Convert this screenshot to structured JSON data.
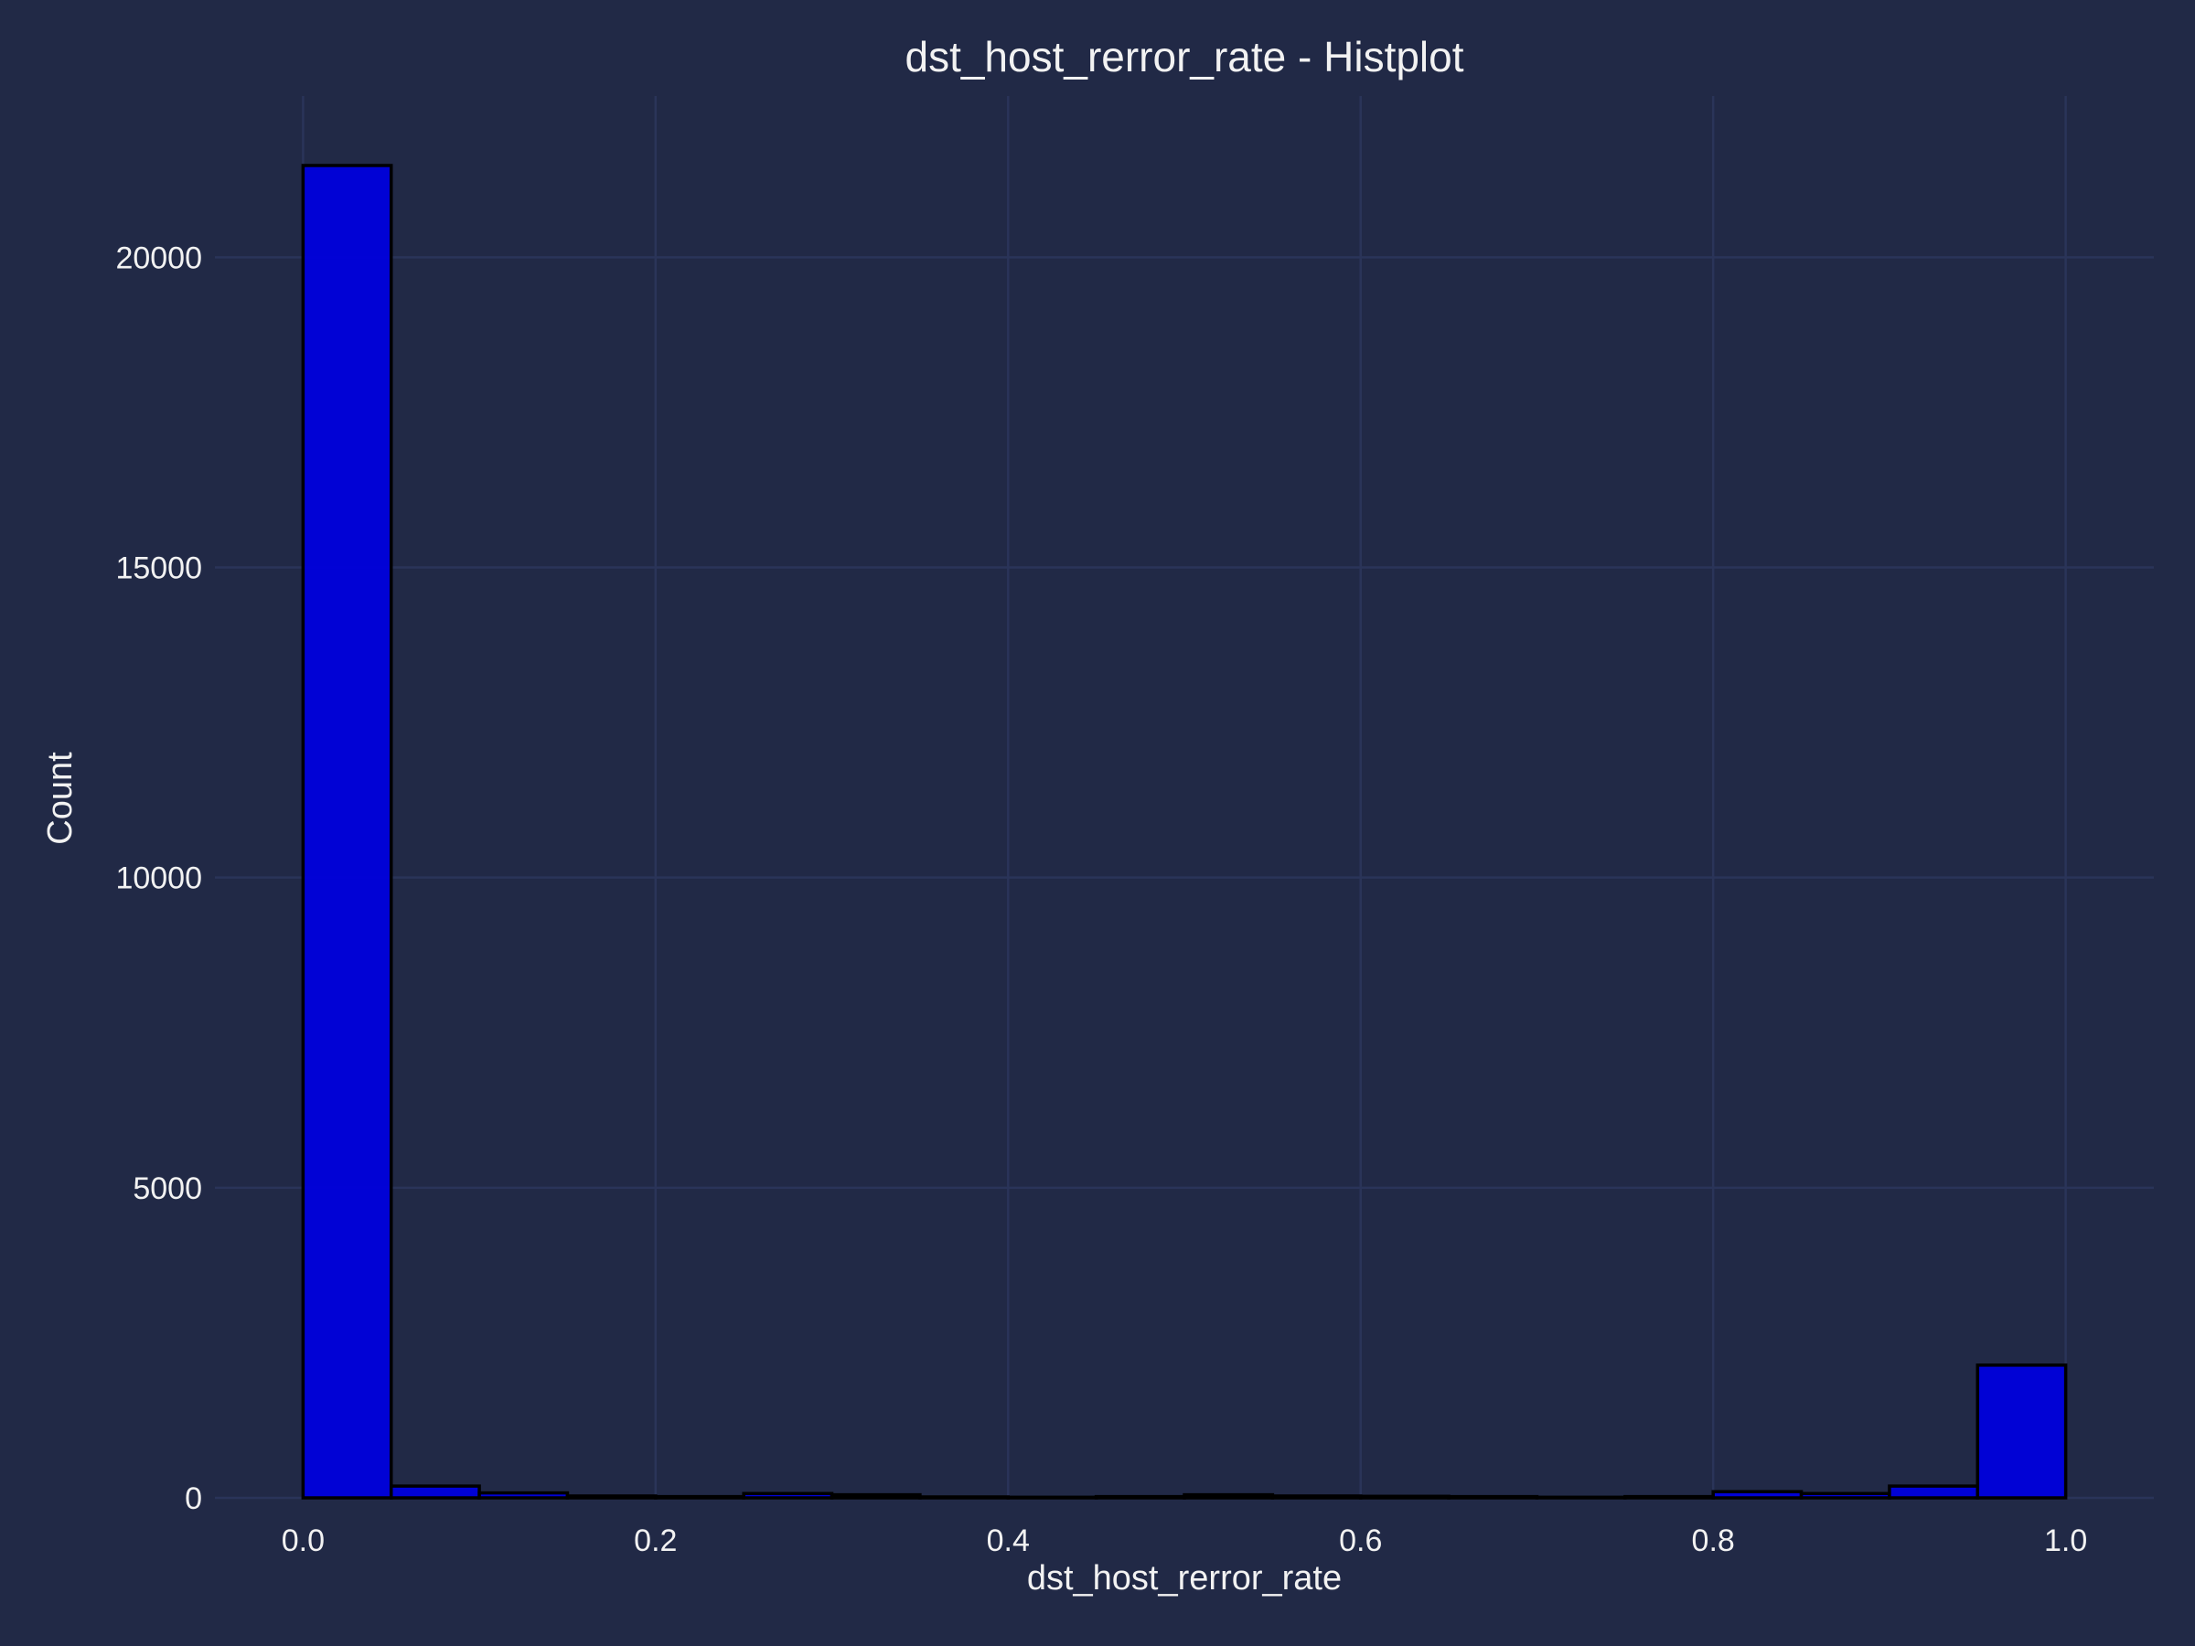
{
  "chart_data": {
    "type": "bar",
    "title": "dst_host_rerror_rate - Histplot",
    "xlabel": "dst_host_rerror_rate",
    "ylabel": "Count",
    "bin_edges": [
      0.0,
      0.05,
      0.1,
      0.15,
      0.2,
      0.25,
      0.3,
      0.35,
      0.4,
      0.45,
      0.5,
      0.55,
      0.6,
      0.65,
      0.7,
      0.75,
      0.8,
      0.85,
      0.9,
      0.95,
      1.0
    ],
    "values": [
      21480,
      190,
      80,
      30,
      20,
      70,
      50,
      15,
      10,
      20,
      50,
      30,
      25,
      20,
      10,
      20,
      100,
      70,
      190,
      2140
    ],
    "xlim": [
      -0.05,
      1.05
    ],
    "ylim": [
      0,
      22600
    ],
    "xticks": [
      0.0,
      0.2,
      0.4,
      0.6,
      0.8,
      1.0
    ],
    "xtick_labels": [
      "0.0",
      "0.2",
      "0.4",
      "0.6",
      "0.8",
      "1.0"
    ],
    "yticks": [
      0,
      5000,
      10000,
      15000,
      20000
    ],
    "ytick_labels": [
      "0",
      "5000",
      "10000",
      "15000",
      "20000"
    ],
    "grid": true,
    "colors": {
      "background": "#212946",
      "grid": "#2a3459",
      "bar_fill": "#0000dd",
      "bar_edge": "#000000",
      "text": "#f2f2f2"
    }
  }
}
